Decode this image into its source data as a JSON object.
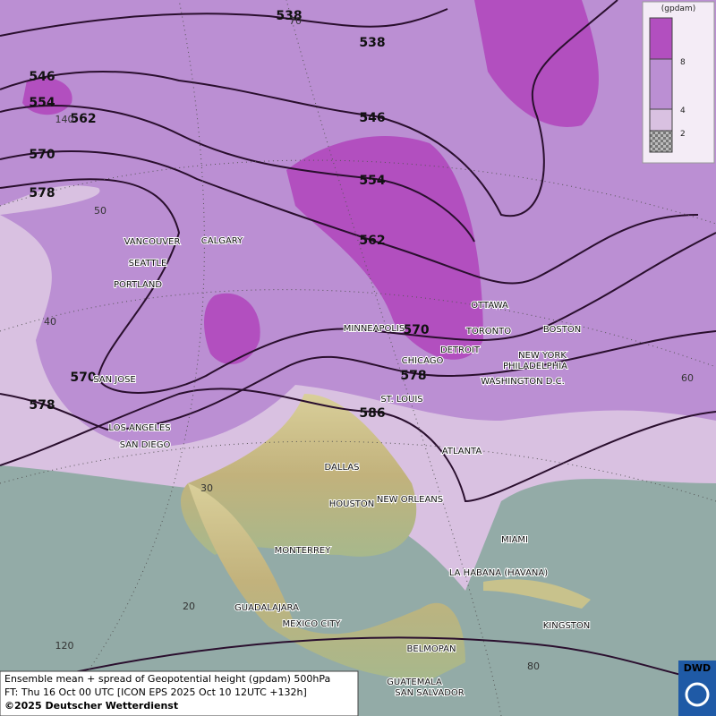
{
  "map": {
    "contour_labels": [
      538,
      538,
      546,
      554,
      562,
      570,
      578,
      546,
      554,
      562,
      570,
      578,
      586,
      570,
      578
    ],
    "cities": [
      "VANCOUVER",
      "CALGARY",
      "SEATTLE",
      "PORTLAND",
      "MINNEAPOLIS",
      "TORONTO",
      "OTTAWA",
      "BOSTON",
      "DETROIT",
      "CHICAGO",
      "NEW YORK",
      "PHILADELPHIA",
      "WASHINGTON D.C.",
      "SAN JOSE",
      "ST. LOUIS",
      "LOS ANGELES",
      "SAN DIEGO",
      "ATLANTA",
      "DALLAS",
      "HOUSTON",
      "NEW ORLEANS",
      "MIAMI",
      "MONTERREY",
      "LA HABANA (HAVANA)",
      "GUADALAJARA",
      "MEXICO CITY",
      "KINGSTON",
      "BELMOPAN",
      "GUATEMALA",
      "SAN SALVADOR"
    ],
    "grid_labels": [
      70,
      140,
      50,
      40,
      30,
      20,
      120,
      80,
      60
    ]
  },
  "legend": {
    "unit": "(gpdam)",
    "levels": [
      8,
      4,
      2
    ]
  },
  "footer": {
    "line1": "Ensemble mean + spread of Geopotential height (gpdam) 500hPa",
    "line2": "FT: Thu 16 Oct 00 UTC [ICON EPS 2025 Oct 10 12UTC +132h]",
    "line3": "©2025 Deutscher Wetterdienst"
  },
  "logo": "DWD"
}
